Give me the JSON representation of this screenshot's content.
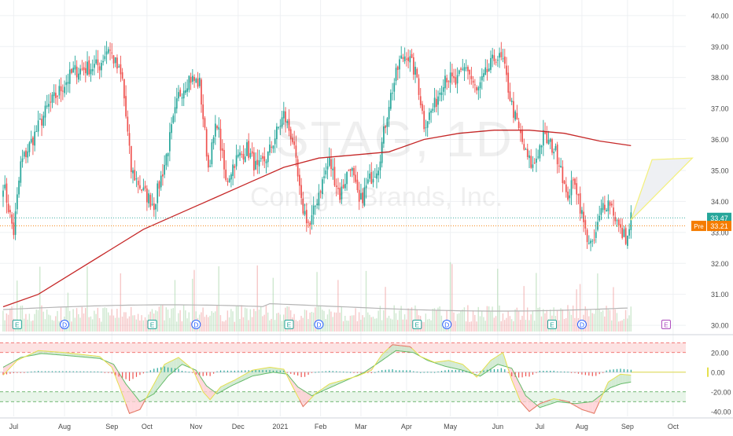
{
  "watermark": {
    "symbol": "STAG, 1D",
    "name": "Conagra Brands, Inc."
  },
  "colors": {
    "up": "#26a69a",
    "down": "#ef5350",
    "ma": "#c62828",
    "volume_ma": "#b5b5b5",
    "vol_up": "#a5d6a7",
    "vol_down": "#ef9a9a",
    "grid": "#eef0f3",
    "axis_text": "#4a4a4a",
    "projection_fill": "#eef0f3",
    "projection_stroke": "#f4f07a",
    "earnings": "#26a69a",
    "dividend": "#2962ff",
    "future_earnings": "#ab47bc",
    "osc_fast": "#e5e04d",
    "osc_slow": "#66bb6a",
    "band_upper": "#fde2e2",
    "band_lower": "#e8f5e9",
    "price_label_bg": "#26a69a",
    "pre_label_bg": "#f57c00"
  },
  "chart_data": [
    {
      "type": "candlestick",
      "title": "",
      "ylim": [
        29.8,
        40.3
      ],
      "y_ticks": [
        "40.00",
        "39.00",
        "38.00",
        "37.00",
        "36.00",
        "35.00",
        "34.00",
        "33.00",
        "32.00",
        "31.00",
        "30.00"
      ],
      "x_labels": [
        "Jul",
        "Aug",
        "Sep",
        "Oct",
        "Nov",
        "Dec",
        "2021",
        "Feb",
        "Mar",
        "Apr",
        "May",
        "Jun",
        "Jul",
        "Aug",
        "Sep",
        "Oct"
      ],
      "anchors": [
        [
          0,
          34.6
        ],
        [
          6,
          33.0
        ],
        [
          10,
          35.2
        ],
        [
          25,
          37.0
        ],
        [
          40,
          38.2
        ],
        [
          55,
          38.4
        ],
        [
          60,
          39.0
        ],
        [
          68,
          37.9
        ],
        [
          73,
          35.0
        ],
        [
          80,
          34.3
        ],
        [
          86,
          33.9
        ],
        [
          92,
          35.2
        ],
        [
          100,
          37.4
        ],
        [
          106,
          38.0
        ],
        [
          112,
          37.8
        ],
        [
          117,
          35.1
        ],
        [
          122,
          36.6
        ],
        [
          127,
          34.6
        ],
        [
          132,
          35.3
        ],
        [
          139,
          35.7
        ],
        [
          145,
          35.0
        ],
        [
          151,
          35.5
        ],
        [
          160,
          36.8
        ],
        [
          165,
          36.0
        ],
        [
          170,
          33.9
        ],
        [
          175,
          33.2
        ],
        [
          180,
          34.3
        ],
        [
          186,
          35.3
        ],
        [
          192,
          34.2
        ],
        [
          198,
          35.2
        ],
        [
          203,
          33.9
        ],
        [
          208,
          34.6
        ],
        [
          214,
          35.2
        ],
        [
          220,
          37.2
        ],
        [
          226,
          38.5
        ],
        [
          230,
          38.8
        ],
        [
          236,
          38.0
        ],
        [
          240,
          36.5
        ],
        [
          246,
          37.1
        ],
        [
          252,
          38.1
        ],
        [
          258,
          37.8
        ],
        [
          264,
          38.4
        ],
        [
          270,
          37.5
        ],
        [
          276,
          38.2
        ],
        [
          281,
          38.7
        ],
        [
          285,
          38.5
        ],
        [
          290,
          37.1
        ],
        [
          294,
          36.3
        ],
        [
          298,
          35.5
        ],
        [
          302,
          35.1
        ],
        [
          308,
          36.1
        ],
        [
          314,
          35.7
        ],
        [
          318,
          35.2
        ],
        [
          321,
          34.1
        ],
        [
          326,
          34.7
        ],
        [
          332,
          33.0
        ],
        [
          336,
          32.5
        ],
        [
          342,
          33.9
        ],
        [
          346,
          34.0
        ],
        [
          352,
          33.0
        ],
        [
          356,
          32.8
        ],
        [
          358,
          33.5
        ]
      ],
      "last_bar_index": 358,
      "last_close": "33.47",
      "pre_market": {
        "label": "Pre",
        "value": "33.21"
      },
      "moving_average": {
        "name": "",
        "values": [
          [
            0,
            30.6
          ],
          [
            20,
            31.0
          ],
          [
            40,
            31.7
          ],
          [
            60,
            32.4
          ],
          [
            80,
            33.1
          ],
          [
            100,
            33.6
          ],
          [
            120,
            34.1
          ],
          [
            140,
            34.6
          ],
          [
            160,
            35.1
          ],
          [
            180,
            35.4
          ],
          [
            200,
            35.5
          ],
          [
            220,
            35.6
          ],
          [
            240,
            36.0
          ],
          [
            260,
            36.2
          ],
          [
            280,
            36.3
          ],
          [
            300,
            36.3
          ],
          [
            320,
            36.2
          ],
          [
            340,
            35.95
          ],
          [
            358,
            35.8
          ]
        ]
      },
      "volume": {
        "ma_level": "mid"
      },
      "projection_polygon": [
        [
          358,
          33.4
        ],
        [
          370,
          35.35
        ],
        [
          393,
          35.4
        ]
      ],
      "events": [
        {
          "type": "earnings",
          "label": "E",
          "index": 8
        },
        {
          "type": "dividend",
          "label": "D",
          "index": 35
        },
        {
          "type": "earnings",
          "label": "E",
          "index": 85
        },
        {
          "type": "dividend",
          "label": "D",
          "index": 110
        },
        {
          "type": "earnings",
          "label": "E",
          "index": 163
        },
        {
          "type": "dividend",
          "label": "D",
          "index": 180
        },
        {
          "type": "earnings",
          "label": "E",
          "index": 236
        },
        {
          "type": "dividend",
          "label": "D",
          "index": 253
        },
        {
          "type": "earnings",
          "label": "E",
          "index": 313
        },
        {
          "type": "dividend",
          "label": "D",
          "index": 330
        },
        {
          "type": "future_earnings",
          "label": "E",
          "index": 378
        }
      ]
    },
    {
      "type": "oscillator",
      "ylim": [
        -45,
        35
      ],
      "y_ticks": [
        "20.00",
        "0.00",
        "-20.00",
        "-40.00"
      ],
      "dashed_levels": [
        30,
        20,
        -20,
        -30
      ],
      "fast": [
        [
          0,
          -3
        ],
        [
          8,
          12
        ],
        [
          20,
          22
        ],
        [
          35,
          20
        ],
        [
          55,
          16
        ],
        [
          62,
          5
        ],
        [
          67,
          -18
        ],
        [
          72,
          -42
        ],
        [
          78,
          -38
        ],
        [
          86,
          -12
        ],
        [
          92,
          8
        ],
        [
          100,
          15
        ],
        [
          108,
          3
        ],
        [
          114,
          -20
        ],
        [
          118,
          -28
        ],
        [
          124,
          -15
        ],
        [
          132,
          -8
        ],
        [
          142,
          2
        ],
        [
          152,
          5
        ],
        [
          160,
          3
        ],
        [
          166,
          -18
        ],
        [
          171,
          -35
        ],
        [
          178,
          -22
        ],
        [
          186,
          -12
        ],
        [
          194,
          -8
        ],
        [
          202,
          -4
        ],
        [
          210,
          2
        ],
        [
          216,
          18
        ],
        [
          222,
          28
        ],
        [
          232,
          26
        ],
        [
          238,
          16
        ],
        [
          246,
          10
        ],
        [
          254,
          12
        ],
        [
          262,
          8
        ],
        [
          270,
          -5
        ],
        [
          278,
          12
        ],
        [
          285,
          20
        ],
        [
          290,
          -8
        ],
        [
          295,
          -30
        ],
        [
          300,
          -40
        ],
        [
          306,
          -32
        ],
        [
          314,
          -27
        ],
        [
          322,
          -30
        ],
        [
          330,
          -38
        ],
        [
          337,
          -42
        ],
        [
          345,
          -10
        ],
        [
          352,
          -2
        ],
        [
          358,
          -3
        ]
      ],
      "slow": [
        [
          0,
          5
        ],
        [
          10,
          15
        ],
        [
          22,
          19
        ],
        [
          36,
          17
        ],
        [
          55,
          14
        ],
        [
          63,
          8
        ],
        [
          70,
          -12
        ],
        [
          78,
          -30
        ],
        [
          86,
          -22
        ],
        [
          94,
          -4
        ],
        [
          102,
          8
        ],
        [
          110,
          2
        ],
        [
          116,
          -14
        ],
        [
          122,
          -22
        ],
        [
          130,
          -14
        ],
        [
          142,
          -4
        ],
        [
          154,
          0
        ],
        [
          162,
          -2
        ],
        [
          168,
          -15
        ],
        [
          176,
          -24
        ],
        [
          186,
          -16
        ],
        [
          196,
          -8
        ],
        [
          206,
          0
        ],
        [
          216,
          12
        ],
        [
          224,
          22
        ],
        [
          234,
          20
        ],
        [
          242,
          12
        ],
        [
          252,
          6
        ],
        [
          262,
          2
        ],
        [
          272,
          -4
        ],
        [
          282,
          8
        ],
        [
          290,
          4
        ],
        [
          298,
          -24
        ],
        [
          306,
          -36
        ],
        [
          316,
          -30
        ],
        [
          326,
          -32
        ],
        [
          336,
          -30
        ],
        [
          346,
          -16
        ],
        [
          352,
          -12
        ],
        [
          358,
          -10
        ]
      ]
    }
  ]
}
